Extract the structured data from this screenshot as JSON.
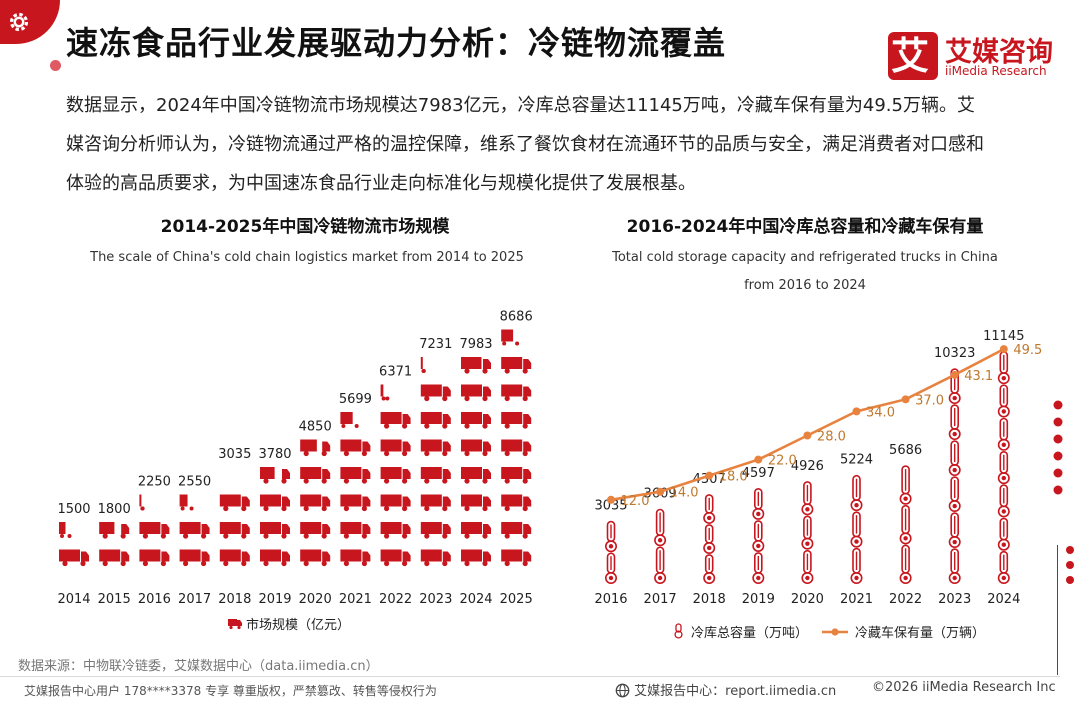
{
  "header": {
    "title": "速冻食品行业发展驱动力分析：冷链物流覆盖",
    "logo_glyph": "艾",
    "logo_name": "艾媒咨询",
    "logo_en": "iiMedia Research"
  },
  "intro": {
    "text": "数据显示，2024年中国冷链物流市场规模达7983亿元，冷库总容量达11145万吨，冷藏车保有量为49.5万辆。艾媒咨询分析师认为，冷链物流通过严格的温控保障，维系了餐饮食材在流通环节的品质与安全，满足消费者对口感和体验的高品质要求，为中国速冻食品行业走向标准化与规模化提供了发展根基。"
  },
  "chart_data": [
    {
      "type": "bar",
      "title": "2014-2025年中国冷链物流市场规模",
      "subtitle": "The scale of China's cold chain logistics market from 2014 to 2025",
      "categories": [
        "2014",
        "2015",
        "2016",
        "2017",
        "2018",
        "2019",
        "2020",
        "2021",
        "2022",
        "2023",
        "2024",
        "2025"
      ],
      "series": [
        {
          "name": "市场规模（亿元）",
          "values": [
            1500,
            1800,
            2250,
            2550,
            3035,
            3780,
            4850,
            5699,
            6371,
            7231,
            7983,
            8686
          ]
        }
      ],
      "ylim": [
        0,
        9000
      ],
      "grid": false,
      "legend_position": "bottom",
      "mark": "truck-icon",
      "color": "#c8161e"
    },
    {
      "type": "bar",
      "title": "2016-2024年中国冷库总容量和冷藏车保有量",
      "subtitle": "Total cold storage capacity and refrigerated trucks in China from 2016 to 2024",
      "categories": [
        "2016",
        "2017",
        "2018",
        "2019",
        "2020",
        "2021",
        "2022",
        "2023",
        "2024"
      ],
      "series": [
        {
          "name": "冷库总容量（万吨）",
          "type": "bar",
          "values": [
            3035,
            3609,
            4307,
            4597,
            4926,
            5224,
            5686,
            10323,
            11145
          ],
          "color": "#c8161e"
        },
        {
          "name": "冷藏车保有量（万辆）",
          "type": "line",
          "values": [
            12.0,
            14.0,
            18.0,
            22.0,
            28.0,
            34.0,
            37.0,
            43.1,
            49.5
          ],
          "color": "#e8823f"
        }
      ],
      "ylim_bar": [
        0,
        12000
      ],
      "ylim_line": [
        0,
        55
      ],
      "grid": false,
      "legend_position": "bottom"
    }
  ],
  "footer": {
    "source": "数据来源：中物联冷链委，艾媒数据中心（data.iimedia.cn）",
    "left": "艾媒报告中心用户 178****3378 专享 尊重版权，严禁篡改、转售等侵权行为",
    "mid": "艾媒报告中心：report.iimedia.cn",
    "right": "©2026  iiMedia Research  Inc"
  },
  "colors": {
    "brand": "#c8161e",
    "line": "#e8823f",
    "stripe": "#ffffff"
  }
}
